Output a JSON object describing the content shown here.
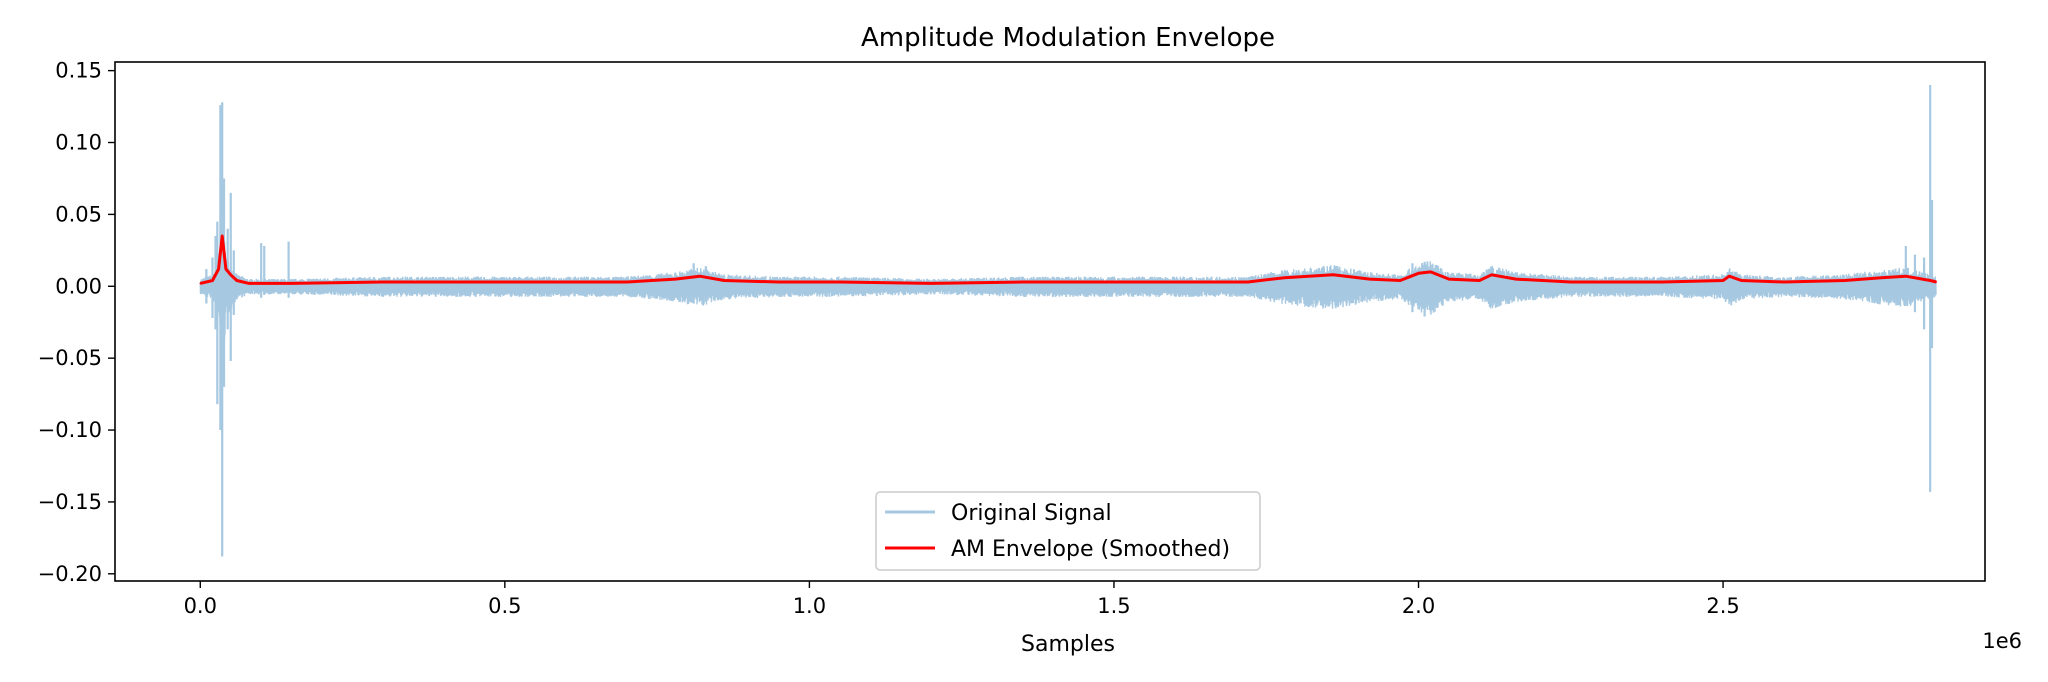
{
  "chart_data": {
    "type": "line",
    "title": "Amplitude Modulation Envelope",
    "xlabel": "Samples",
    "ylabel": "",
    "x_offset_label": "1e6",
    "xlim": [
      -0.14,
      2.93
    ],
    "ylim": [
      -0.205,
      0.156
    ],
    "x_ticks": [
      0.0,
      0.5,
      1.0,
      1.5,
      2.0,
      2.5
    ],
    "x_tick_labels": [
      "0.0",
      "0.5",
      "1.0",
      "1.5",
      "2.0",
      "2.5"
    ],
    "y_ticks": [
      0.15,
      0.1,
      0.05,
      0.0,
      -0.05,
      -0.1,
      -0.15,
      -0.2
    ],
    "y_tick_labels": [
      "0.15",
      "0.10",
      "0.05",
      "0.00",
      "−0.05",
      "−0.10",
      "−0.15",
      "−0.20"
    ],
    "grid": false,
    "legend_position": "lower-center",
    "series": [
      {
        "name": "Original Signal",
        "color": "#a6c8e0",
        "spikes": [
          {
            "x": 0.01,
            "hi": 0.012,
            "lo": -0.012
          },
          {
            "x": 0.02,
            "hi": 0.02,
            "lo": -0.022
          },
          {
            "x": 0.025,
            "hi": 0.035,
            "lo": -0.03
          },
          {
            "x": 0.028,
            "hi": 0.045,
            "lo": -0.082
          },
          {
            "x": 0.033,
            "hi": 0.126,
            "lo": -0.1
          },
          {
            "x": 0.036,
            "hi": 0.128,
            "lo": -0.188
          },
          {
            "x": 0.039,
            "hi": 0.075,
            "lo": -0.07
          },
          {
            "x": 0.045,
            "hi": 0.04,
            "lo": -0.03
          },
          {
            "x": 0.05,
            "hi": 0.065,
            "lo": -0.052
          },
          {
            "x": 0.055,
            "hi": 0.025,
            "lo": -0.02
          },
          {
            "x": 0.1,
            "hi": 0.03,
            "lo": -0.008
          },
          {
            "x": 0.105,
            "hi": 0.028,
            "lo": -0.006
          },
          {
            "x": 0.145,
            "hi": 0.031,
            "lo": -0.008
          },
          {
            "x": 0.81,
            "hi": 0.016,
            "lo": -0.012
          },
          {
            "x": 0.83,
            "hi": 0.014,
            "lo": -0.011
          },
          {
            "x": 1.99,
            "hi": 0.016,
            "lo": -0.018
          },
          {
            "x": 2.01,
            "hi": 0.017,
            "lo": -0.021
          },
          {
            "x": 2.03,
            "hi": 0.014,
            "lo": -0.015
          },
          {
            "x": 2.8,
            "hi": 0.028,
            "lo": -0.01
          },
          {
            "x": 2.815,
            "hi": 0.022,
            "lo": -0.018
          },
          {
            "x": 2.83,
            "hi": 0.02,
            "lo": -0.03
          },
          {
            "x": 2.84,
            "hi": 0.14,
            "lo": -0.143
          },
          {
            "x": 2.843,
            "hi": 0.06,
            "lo": -0.043
          }
        ]
      },
      {
        "name": "AM Envelope (Smoothed)",
        "color": "#ff0000",
        "x": [
          0.0,
          0.02,
          0.03,
          0.036,
          0.042,
          0.05,
          0.06,
          0.08,
          0.15,
          0.3,
          0.45,
          0.6,
          0.7,
          0.78,
          0.82,
          0.86,
          0.95,
          1.05,
          1.2,
          1.35,
          1.5,
          1.62,
          1.72,
          1.78,
          1.86,
          1.92,
          1.97,
          2.0,
          2.02,
          2.05,
          2.1,
          2.12,
          2.16,
          2.25,
          2.4,
          2.5,
          2.51,
          2.53,
          2.6,
          2.7,
          2.76,
          2.8,
          2.84,
          2.85
        ],
        "y": [
          0.002,
          0.004,
          0.012,
          0.035,
          0.012,
          0.008,
          0.004,
          0.002,
          0.002,
          0.003,
          0.003,
          0.003,
          0.003,
          0.005,
          0.007,
          0.004,
          0.003,
          0.003,
          0.002,
          0.003,
          0.003,
          0.003,
          0.003,
          0.006,
          0.008,
          0.005,
          0.004,
          0.009,
          0.01,
          0.005,
          0.004,
          0.008,
          0.005,
          0.003,
          0.003,
          0.004,
          0.007,
          0.004,
          0.003,
          0.004,
          0.006,
          0.007,
          0.004,
          0.003
        ]
      }
    ]
  }
}
